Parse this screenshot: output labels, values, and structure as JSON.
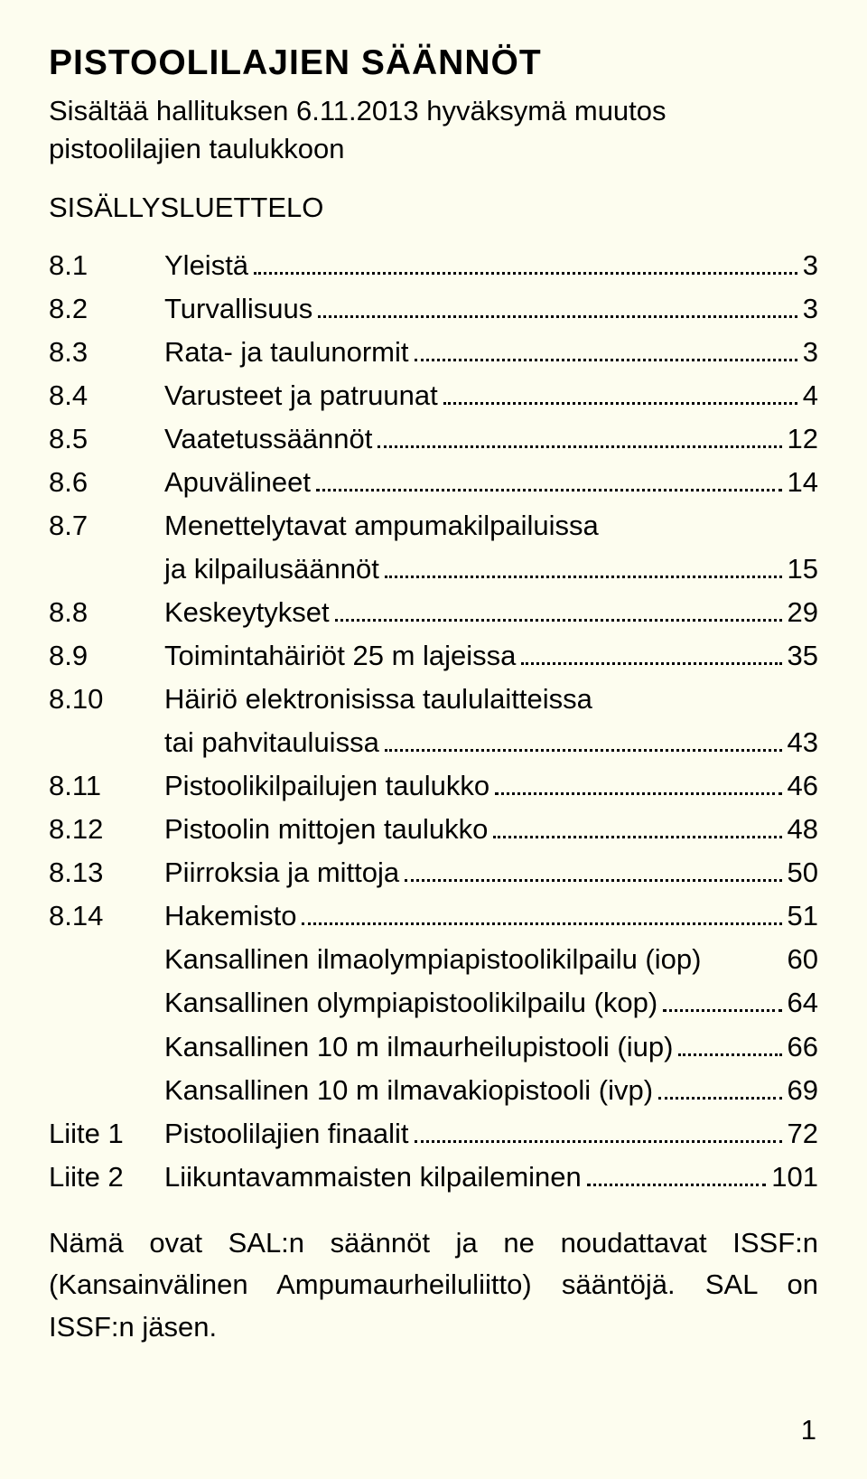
{
  "colors": {
    "background": "#fdfdef",
    "text": "#000000"
  },
  "typography": {
    "family": "Arial",
    "title_size_pt": 29,
    "body_size_pt": 23
  },
  "title": "PISTOOLILAJIEN SÄÄNNÖT",
  "subtitle": "Sisältää hallituksen 6.11.2013 hyväksymä muutos pistoolilajien taulukkoon",
  "toc_heading": "SISÄLLYSLUETTELO",
  "toc": [
    {
      "num": "8.1",
      "label": "Yleistä",
      "page": "3"
    },
    {
      "num": "8.2",
      "label": "Turvallisuus",
      "page": "3"
    },
    {
      "num": "8.3",
      "label": "Rata- ja taulunormit",
      "page": "3"
    },
    {
      "num": "8.4",
      "label": "Varusteet ja patruunat",
      "page": "4"
    },
    {
      "num": "8.5",
      "label": "Vaatetussäännöt",
      "page": "12"
    },
    {
      "num": "8.6",
      "label": "Apuvälineet",
      "page": "14"
    },
    {
      "num": "8.7",
      "label_l1": "Menettelytavat ampumakilpailuissa",
      "label_l2": "ja kilpailusäännöt",
      "page": "15"
    },
    {
      "num": "8.8",
      "label": "Keskeytykset",
      "page": "29"
    },
    {
      "num": "8.9",
      "label": "Toimintahäiriöt 25 m lajeissa",
      "page": "35"
    },
    {
      "num": "8.10",
      "label_l1": "Häiriö elektronisissa taululaitteissa",
      "label_l2": "tai pahvitauluissa",
      "page": "43"
    },
    {
      "num": "8.11",
      "label": "Pistoolikilpailujen taulukko",
      "page": "46"
    },
    {
      "num": "8.12",
      "label": "Pistoolin mittojen taulukko",
      "page": "48"
    },
    {
      "num": "8.13",
      "label": "Piirroksia ja mittoja",
      "page": "50"
    },
    {
      "num": "8.14",
      "label": "Hakemisto",
      "page": "51"
    },
    {
      "num": "",
      "label": "Kansallinen ilmaolympiapistoolikilpailu (iop)",
      "page": "60",
      "nodots": true
    },
    {
      "num": "",
      "label": "Kansallinen olympiapistoolikilpailu (kop)",
      "page": "64"
    },
    {
      "num": "",
      "label": "Kansallinen 10 m ilmaurheilupistooli (iup)",
      "page": "66"
    },
    {
      "num": "",
      "label": "Kansallinen 10 m ilmavakiopistooli (ivp)",
      "page": "69"
    },
    {
      "num": "Liite 1",
      "label": "Pistoolilajien finaalit",
      "page": "72"
    },
    {
      "num": "Liite 2",
      "label": "Liikuntavammaisten kilpaileminen",
      "page": "101"
    }
  ],
  "footer_text": "Nämä ovat SAL:n säännöt ja ne noudattavat ISSF:n (Kansainvälinen Ampumaurheiluliitto) sääntöjä. SAL on ISSF:n jäsen.",
  "page_number": "1"
}
